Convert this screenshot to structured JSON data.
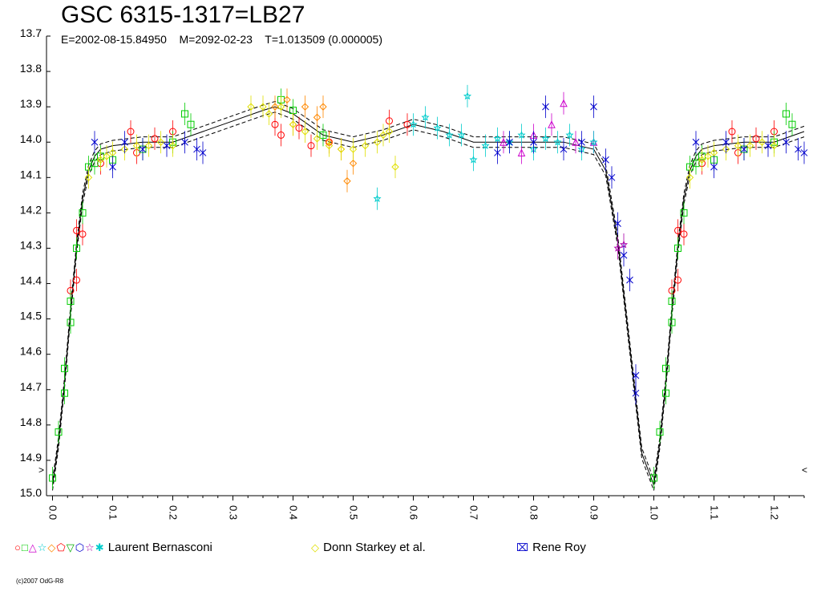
{
  "title": "GSC 6315-1317=LB27",
  "subtitle": "E=2002-08-15.84950    M=2092-02-23    T=1.013509 (0.000005)",
  "copyright": "(c)2007 OdG-R8",
  "chart_data": {
    "type": "scatter",
    "xlim": [
      -0.01,
      1.25
    ],
    "ylim": [
      13.7,
      15.0
    ],
    "y_inverted": true,
    "x_ticks": [
      "0.0",
      "0.1",
      "0.2",
      "0.3",
      "0.4",
      "0.5",
      "0.6",
      "0.7",
      "0.8",
      "0.9",
      "1.0",
      "1.1",
      "1.2"
    ],
    "y_ticks": [
      "13.7",
      "13.8",
      "13.9",
      "14.0",
      "14.1",
      "14.2",
      "14.3",
      "14.4",
      "14.5",
      "14.6",
      "14.7",
      "14.8",
      "14.9",
      "15.0"
    ],
    "grid": false,
    "legend_position": "bottom",
    "legend": [
      {
        "name": "Laurent Bernasconi",
        "symbols": "○□△☆◇⬠▽⬡☆✱",
        "colors": [
          "#ff0000",
          "#00cc00",
          "#cc00cc",
          "#00cccc",
          "#ff8800",
          "#ff0000",
          "#00aa00",
          "#0000cc",
          "#aa00aa",
          "#00cccc"
        ]
      },
      {
        "name": "Donn Starkey et al.",
        "symbols": "◇",
        "colors": [
          "#e0e000"
        ]
      },
      {
        "name": "Rene Roy",
        "symbols": "⌧",
        "colors": [
          "#0000cc"
        ]
      }
    ],
    "model_curve": {
      "phase": [
        0.0,
        0.01,
        0.02,
        0.03,
        0.04,
        0.05,
        0.06,
        0.07,
        0.08,
        0.1,
        0.15,
        0.2,
        0.25,
        0.3,
        0.35,
        0.37,
        0.4,
        0.45,
        0.5,
        0.55,
        0.6,
        0.65,
        0.7,
        0.75,
        0.8,
        0.85,
        0.9,
        0.92,
        0.94,
        0.96,
        0.98,
        1.0
      ],
      "mag": [
        14.97,
        14.85,
        14.68,
        14.48,
        14.3,
        14.16,
        14.08,
        14.04,
        14.02,
        14.01,
        14.0,
        14.0,
        13.97,
        13.94,
        13.91,
        13.9,
        13.92,
        13.98,
        14.0,
        13.98,
        13.95,
        13.97,
        14.0,
        14.0,
        14.0,
        14.0,
        14.02,
        14.08,
        14.28,
        14.58,
        14.88,
        14.97
      ],
      "band_width": 0.015
    },
    "series": [
      {
        "name": "Laurent Bernasconi",
        "color": "#ff0000",
        "marker": "circle",
        "x": [
          0.03,
          0.04,
          0.04,
          0.05,
          0.08,
          0.13,
          0.14,
          0.17,
          0.2,
          0.37,
          0.38,
          0.41,
          0.43,
          0.46,
          0.56,
          0.59
        ],
        "y": [
          14.42,
          14.39,
          14.25,
          14.26,
          14.06,
          13.97,
          14.03,
          13.99,
          13.97,
          13.95,
          13.98,
          13.96,
          14.01,
          14.0,
          13.94,
          13.95
        ]
      },
      {
        "name": "Laurent Bernasconi",
        "color": "#00cc00",
        "marker": "square",
        "x": [
          0.0,
          0.01,
          0.02,
          0.02,
          0.03,
          0.03,
          0.04,
          0.05,
          0.06,
          0.07,
          0.08,
          0.1,
          0.15,
          0.2,
          0.22,
          0.23,
          0.38,
          0.4,
          0.45
        ],
        "y": [
          14.95,
          14.82,
          14.71,
          14.64,
          14.51,
          14.45,
          14.3,
          14.2,
          14.07,
          14.06,
          14.04,
          14.05,
          14.02,
          14.0,
          13.92,
          13.95,
          13.88,
          13.91,
          13.98
        ]
      },
      {
        "name": "Laurent Bernasconi",
        "color": "#cc00cc",
        "marker": "triangle",
        "x": [
          0.75,
          0.78,
          0.8,
          0.83,
          0.85,
          0.87,
          0.9
        ],
        "y": [
          14.0,
          14.03,
          13.98,
          13.95,
          13.89,
          14.0,
          14.0
        ]
      },
      {
        "name": "Laurent Bernasconi",
        "color": "#00cccc",
        "marker": "star",
        "x": [
          0.54,
          0.6,
          0.62,
          0.64,
          0.66,
          0.68,
          0.69,
          0.7,
          0.72,
          0.74,
          0.76,
          0.78,
          0.8,
          0.82,
          0.84,
          0.86,
          0.88,
          0.9
        ],
        "y": [
          14.16,
          13.95,
          13.93,
          13.96,
          13.98,
          13.98,
          13.87,
          14.05,
          14.01,
          13.99,
          14.0,
          13.98,
          14.02,
          13.99,
          14.0,
          13.98,
          14.02,
          14.0
        ]
      },
      {
        "name": "Laurent Bernasconi",
        "color": "#ff8800",
        "marker": "diamond",
        "x": [
          0.37,
          0.39,
          0.4,
          0.42,
          0.44,
          0.45,
          0.46,
          0.48,
          0.49,
          0.5
        ],
        "y": [
          13.9,
          13.88,
          13.95,
          13.9,
          13.93,
          13.9,
          14.0,
          14.02,
          14.11,
          14.06
        ]
      },
      {
        "name": "Laurent Bernasconi",
        "color": "#aa00aa",
        "marker": "star",
        "x": [
          0.94,
          0.95
        ],
        "y": [
          14.3,
          14.29
        ]
      },
      {
        "name": "Donn Starkey et al.",
        "color": "#e0e000",
        "marker": "diamond",
        "x": [
          0.06,
          0.08,
          0.09,
          0.1,
          0.12,
          0.14,
          0.16,
          0.18,
          0.2,
          0.33,
          0.35,
          0.36,
          0.38,
          0.4,
          0.42,
          0.44,
          0.46,
          0.48,
          0.5,
          0.52,
          0.54,
          0.55,
          0.56,
          0.57
        ],
        "y": [
          14.1,
          14.05,
          14.04,
          14.03,
          14.02,
          14.01,
          14.01,
          14.0,
          14.01,
          13.9,
          13.9,
          13.92,
          13.9,
          13.95,
          13.97,
          13.99,
          14.01,
          14.02,
          14.02,
          14.01,
          14.0,
          13.98,
          13.97,
          14.07
        ]
      },
      {
        "name": "Rene Roy",
        "color": "#0000cc",
        "marker": "star4",
        "x": [
          0.07,
          0.1,
          0.12,
          0.15,
          0.19,
          0.22,
          0.24,
          0.25,
          0.74,
          0.76,
          0.8,
          0.82,
          0.85,
          0.88,
          0.9,
          0.92,
          0.93,
          0.94,
          0.95,
          0.96,
          0.97,
          0.97
        ],
        "y": [
          14.0,
          14.07,
          14.0,
          14.02,
          14.01,
          14.0,
          14.02,
          14.03,
          14.03,
          14.0,
          14.0,
          13.9,
          14.02,
          14.0,
          13.9,
          14.05,
          14.1,
          14.23,
          14.32,
          14.39,
          14.66,
          14.71
        ]
      }
    ]
  }
}
